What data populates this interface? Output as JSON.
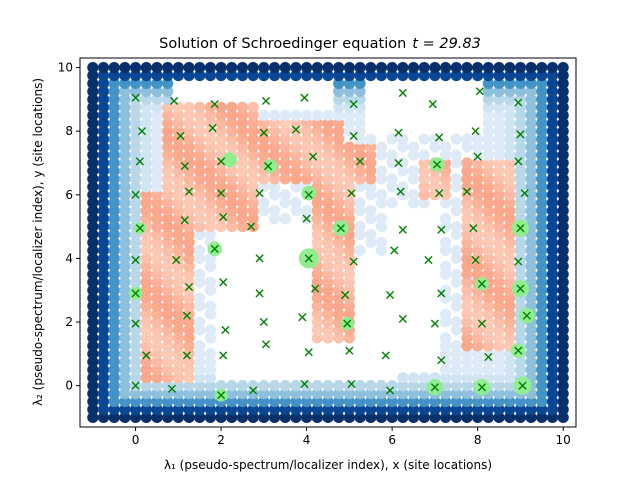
{
  "chart_data": {
    "type": "scatter",
    "title": "Solution of Schroedinger equation",
    "title_time_label": "t = 29.83",
    "xlabel": "λ₁ (pseudo-spectrum/localizer index), x (site locations)",
    "ylabel": "λ₂ (pseudo-spectrum/localizer index), y (site locations)",
    "xlim": [
      -1.3,
      10.3
    ],
    "ylim": [
      -1.3,
      10.3
    ],
    "xticks": [
      0,
      2,
      4,
      6,
      8,
      10
    ],
    "yticks": [
      0,
      2,
      4,
      6,
      8,
      10
    ],
    "grid": false,
    "colors": {
      "background_map": "Blues (pseudospectrum) / Reds (localized)",
      "site_marker": "#008000",
      "wavefunction": "#90ee90"
    },
    "pseudospectrum_grid": {
      "x_range": [
        -1,
        10
      ],
      "y_range": [
        -1,
        10
      ],
      "step": 0.25
    },
    "red_regions": [
      {
        "x": [
          0.75,
          2.75
        ],
        "y": [
          5.0,
          8.75
        ]
      },
      {
        "x": [
          2.75,
          4.75
        ],
        "y": [
          6.5,
          8.25
        ]
      },
      {
        "x": [
          0.25,
          1.25
        ],
        "y": [
          0.25,
          6.0
        ]
      },
      {
        "x": [
          4.25,
          5.0
        ],
        "y": [
          1.5,
          6.5
        ]
      },
      {
        "x": [
          5.0,
          5.5
        ],
        "y": [
          6.5,
          7.5
        ]
      },
      {
        "x": [
          7.75,
          8.75
        ],
        "y": [
          1.25,
          7.0
        ]
      },
      {
        "x": [
          6.75,
          7.25
        ],
        "y": [
          6.0,
          7.0
        ]
      }
    ],
    "white_regions": [
      {
        "x": [
          2.0,
          4.75
        ],
        "y": [
          0.25,
          5.0
        ]
      },
      {
        "x": [
          5.5,
          8.0
        ],
        "y": [
          8.0,
          9.5
        ]
      },
      {
        "x": [
          5.0,
          6.0
        ],
        "y": [
          0.25,
          4.0
        ]
      },
      {
        "x": [
          6.0,
          7.0
        ],
        "y": [
          0.5,
          5.5
        ]
      },
      {
        "x": [
          1.0,
          2.0
        ],
        "y": [
          9.0,
          9.5
        ]
      },
      {
        "x": [
          2.0,
          4.5
        ],
        "y": [
          8.75,
          9.5
        ]
      }
    ],
    "sites": [
      [
        0.0,
        9.05
      ],
      [
        0.15,
        8.0
      ],
      [
        0.1,
        7.05
      ],
      [
        0.0,
        6.0
      ],
      [
        0.1,
        4.95
      ],
      [
        0.0,
        3.95
      ],
      [
        0.0,
        2.9
      ],
      [
        0.0,
        1.95
      ],
      [
        0.25,
        0.95
      ],
      [
        0.0,
        0.0
      ],
      [
        0.9,
        8.95
      ],
      [
        1.05,
        7.85
      ],
      [
        1.15,
        6.9
      ],
      [
        1.25,
        6.1
      ],
      [
        1.15,
        5.2
      ],
      [
        0.95,
        3.95
      ],
      [
        1.25,
        3.1
      ],
      [
        1.2,
        2.2
      ],
      [
        1.2,
        0.95
      ],
      [
        0.85,
        -0.1
      ],
      [
        1.85,
        8.85
      ],
      [
        1.8,
        8.1
      ],
      [
        2.0,
        7.05
      ],
      [
        2.0,
        6.05
      ],
      [
        2.05,
        5.3
      ],
      [
        1.85,
        4.3
      ],
      [
        2.05,
        3.25
      ],
      [
        2.1,
        1.75
      ],
      [
        2.05,
        0.95
      ],
      [
        2.0,
        -0.3
      ],
      [
        3.05,
        8.95
      ],
      [
        3.0,
        7.95
      ],
      [
        3.1,
        6.9
      ],
      [
        2.9,
        6.05
      ],
      [
        2.7,
        5.0
      ],
      [
        2.9,
        4.0
      ],
      [
        2.9,
        2.9
      ],
      [
        3.0,
        2.0
      ],
      [
        3.05,
        1.3
      ],
      [
        2.75,
        -0.15
      ],
      [
        3.95,
        9.05
      ],
      [
        3.75,
        8.05
      ],
      [
        4.15,
        7.2
      ],
      [
        4.05,
        6.0
      ],
      [
        4.0,
        5.25
      ],
      [
        4.05,
        4.0
      ],
      [
        4.2,
        3.05
      ],
      [
        3.9,
        2.15
      ],
      [
        4.05,
        1.05
      ],
      [
        3.95,
        0.05
      ],
      [
        5.1,
        8.85
      ],
      [
        5.1,
        7.85
      ],
      [
        5.25,
        7.05
      ],
      [
        5.05,
        6.05
      ],
      [
        4.8,
        4.95
      ],
      [
        5.1,
        3.9
      ],
      [
        4.9,
        2.85
      ],
      [
        4.95,
        1.95
      ],
      [
        5.0,
        1.1
      ],
      [
        5.05,
        0.05
      ],
      [
        6.25,
        9.2
      ],
      [
        6.15,
        7.95
      ],
      [
        6.15,
        7.0
      ],
      [
        6.2,
        6.1
      ],
      [
        6.25,
        4.9
      ],
      [
        6.05,
        4.25
      ],
      [
        5.95,
        2.85
      ],
      [
        6.25,
        2.1
      ],
      [
        5.85,
        0.95
      ],
      [
        5.95,
        -0.15
      ],
      [
        6.95,
        8.85
      ],
      [
        7.1,
        7.8
      ],
      [
        7.05,
        6.95
      ],
      [
        7.1,
        6.05
      ],
      [
        7.15,
        4.9
      ],
      [
        6.85,
        3.95
      ],
      [
        7.15,
        2.9
      ],
      [
        7.0,
        1.95
      ],
      [
        7.15,
        0.8
      ],
      [
        7.0,
        -0.05
      ],
      [
        8.05,
        9.25
      ],
      [
        7.95,
        8.0
      ],
      [
        8.0,
        7.2
      ],
      [
        7.75,
        6.1
      ],
      [
        7.9,
        4.95
      ],
      [
        7.95,
        3.95
      ],
      [
        8.1,
        3.2
      ],
      [
        8.1,
        1.95
      ],
      [
        8.25,
        0.9
      ],
      [
        8.1,
        -0.05
      ],
      [
        8.95,
        8.9
      ],
      [
        9.0,
        7.9
      ],
      [
        8.95,
        7.05
      ],
      [
        9.1,
        6.05
      ],
      [
        9.0,
        4.95
      ],
      [
        8.95,
        3.9
      ],
      [
        9.0,
        3.05
      ],
      [
        9.15,
        2.2
      ],
      [
        8.95,
        1.1
      ],
      [
        9.05,
        0.0
      ]
    ],
    "wavefunction_points": [
      {
        "x": 4.05,
        "y": 4.0,
        "amp": 1.0
      },
      {
        "x": 2.2,
        "y": 7.1,
        "amp": 0.55
      },
      {
        "x": 3.15,
        "y": 6.9,
        "amp": 0.5
      },
      {
        "x": 4.05,
        "y": 6.05,
        "amp": 0.55
      },
      {
        "x": 4.8,
        "y": 4.95,
        "amp": 0.65
      },
      {
        "x": 1.85,
        "y": 4.3,
        "amp": 0.55
      },
      {
        "x": 7.05,
        "y": 6.95,
        "amp": 0.55
      },
      {
        "x": 9.0,
        "y": 4.95,
        "amp": 0.75
      },
      {
        "x": 9.0,
        "y": 3.05,
        "amp": 0.75
      },
      {
        "x": 9.15,
        "y": 2.2,
        "amp": 0.65
      },
      {
        "x": 8.95,
        "y": 1.1,
        "amp": 0.55
      },
      {
        "x": 9.05,
        "y": 0.0,
        "amp": 0.85
      },
      {
        "x": 8.1,
        "y": -0.05,
        "amp": 0.7
      },
      {
        "x": 7.0,
        "y": -0.05,
        "amp": 0.7
      },
      {
        "x": 2.0,
        "y": -0.3,
        "amp": 0.4
      },
      {
        "x": 4.95,
        "y": 1.95,
        "amp": 0.45
      },
      {
        "x": 8.1,
        "y": 3.2,
        "amp": 0.45
      },
      {
        "x": 0.0,
        "y": 2.9,
        "amp": 0.45
      },
      {
        "x": 0.1,
        "y": 4.95,
        "amp": 0.35
      }
    ]
  }
}
